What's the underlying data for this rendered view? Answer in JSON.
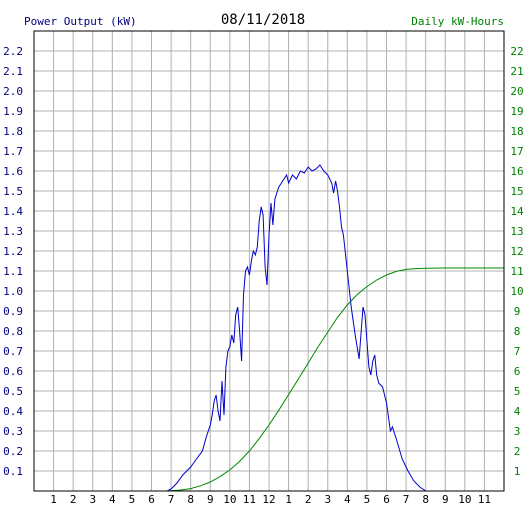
{
  "header": {
    "left_label": "Power Output (kW)",
    "date": "08/11/2018",
    "right_label": "Daily kW-Hours"
  },
  "colors": {
    "power": "#0000cc",
    "energy": "#008800",
    "grid": "#b0b0b0",
    "axis_text_left": "#000080",
    "axis_text_right": "#008000",
    "title": "#000000"
  },
  "chart_data": {
    "type": "line",
    "x_axis": {
      "ticks": [
        "1",
        "2",
        "3",
        "4",
        "5",
        "6",
        "7",
        "8",
        "9",
        "10",
        "11",
        "12",
        "1",
        "2",
        "3",
        "4",
        "5",
        "6",
        "7",
        "8",
        "9",
        "10",
        "11"
      ],
      "xlim": [
        0,
        24
      ],
      "unit": "hour of day"
    },
    "y_left": {
      "ticks": [
        "0.1",
        "0.2",
        "0.3",
        "0.4",
        "0.5",
        "0.6",
        "0.7",
        "0.8",
        "0.9",
        "1.0",
        "1.1",
        "1.2",
        "1.3",
        "1.4",
        "1.5",
        "1.6",
        "1.7",
        "1.8",
        "1.9",
        "2.0",
        "2.1",
        "2.2"
      ],
      "ylim": [
        0,
        2.3
      ],
      "label": "Power Output (kW)"
    },
    "y_right": {
      "ticks": [
        "1",
        "2",
        "3",
        "4",
        "5",
        "6",
        "7",
        "8",
        "9",
        "10",
        "11",
        "12",
        "13",
        "14",
        "15",
        "16",
        "17",
        "18",
        "19",
        "20",
        "21",
        "22"
      ],
      "ylim": [
        0,
        23
      ],
      "label": "Daily kW-Hours"
    },
    "grid": true,
    "series": [
      {
        "name": "Power Output (kW)",
        "axis": "left",
        "points": [
          [
            6.8,
            0.0
          ],
          [
            7.0,
            0.01
          ],
          [
            7.3,
            0.04
          ],
          [
            7.6,
            0.08
          ],
          [
            8.0,
            0.12
          ],
          [
            8.3,
            0.16
          ],
          [
            8.6,
            0.2
          ],
          [
            8.8,
            0.27
          ],
          [
            9.0,
            0.33
          ],
          [
            9.1,
            0.38
          ],
          [
            9.2,
            0.45
          ],
          [
            9.3,
            0.48
          ],
          [
            9.4,
            0.4
          ],
          [
            9.5,
            0.35
          ],
          [
            9.6,
            0.55
          ],
          [
            9.7,
            0.38
          ],
          [
            9.8,
            0.62
          ],
          [
            9.9,
            0.7
          ],
          [
            10.0,
            0.72
          ],
          [
            10.1,
            0.78
          ],
          [
            10.2,
            0.74
          ],
          [
            10.3,
            0.88
          ],
          [
            10.4,
            0.92
          ],
          [
            10.5,
            0.8
          ],
          [
            10.6,
            0.65
          ],
          [
            10.7,
            0.98
          ],
          [
            10.8,
            1.1
          ],
          [
            10.9,
            1.12
          ],
          [
            11.0,
            1.08
          ],
          [
            11.1,
            1.15
          ],
          [
            11.2,
            1.2
          ],
          [
            11.3,
            1.18
          ],
          [
            11.4,
            1.22
          ],
          [
            11.5,
            1.35
          ],
          [
            11.6,
            1.42
          ],
          [
            11.7,
            1.38
          ],
          [
            11.8,
            1.12
          ],
          [
            11.9,
            1.03
          ],
          [
            12.0,
            1.28
          ],
          [
            12.1,
            1.44
          ],
          [
            12.2,
            1.33
          ],
          [
            12.3,
            1.46
          ],
          [
            12.5,
            1.52
          ],
          [
            12.7,
            1.55
          ],
          [
            12.9,
            1.58
          ],
          [
            13.0,
            1.54
          ],
          [
            13.2,
            1.58
          ],
          [
            13.4,
            1.56
          ],
          [
            13.6,
            1.6
          ],
          [
            13.8,
            1.59
          ],
          [
            14.0,
            1.62
          ],
          [
            14.2,
            1.6
          ],
          [
            14.4,
            1.61
          ],
          [
            14.6,
            1.63
          ],
          [
            14.8,
            1.6
          ],
          [
            15.0,
            1.58
          ],
          [
            15.2,
            1.54
          ],
          [
            15.3,
            1.49
          ],
          [
            15.4,
            1.55
          ],
          [
            15.5,
            1.5
          ],
          [
            15.6,
            1.42
          ],
          [
            15.7,
            1.32
          ],
          [
            15.8,
            1.28
          ],
          [
            16.0,
            1.1
          ],
          [
            16.2,
            0.92
          ],
          [
            16.4,
            0.78
          ],
          [
            16.6,
            0.66
          ],
          [
            16.8,
            0.92
          ],
          [
            16.9,
            0.88
          ],
          [
            17.0,
            0.75
          ],
          [
            17.1,
            0.62
          ],
          [
            17.2,
            0.58
          ],
          [
            17.3,
            0.65
          ],
          [
            17.4,
            0.68
          ],
          [
            17.5,
            0.58
          ],
          [
            17.6,
            0.54
          ],
          [
            17.8,
            0.52
          ],
          [
            18.0,
            0.44
          ],
          [
            18.2,
            0.3
          ],
          [
            18.3,
            0.32
          ],
          [
            18.5,
            0.26
          ],
          [
            18.8,
            0.16
          ],
          [
            19.1,
            0.1
          ],
          [
            19.4,
            0.05
          ],
          [
            19.7,
            0.02
          ],
          [
            20.0,
            0.0
          ]
        ]
      },
      {
        "name": "Daily kW-Hours",
        "axis": "right",
        "points": [
          [
            6.8,
            0.0
          ],
          [
            7.5,
            0.05
          ],
          [
            8.0,
            0.12
          ],
          [
            8.5,
            0.26
          ],
          [
            9.0,
            0.45
          ],
          [
            9.5,
            0.72
          ],
          [
            10.0,
            1.05
          ],
          [
            10.5,
            1.48
          ],
          [
            11.0,
            2.0
          ],
          [
            11.5,
            2.62
          ],
          [
            12.0,
            3.3
          ],
          [
            12.5,
            4.04
          ],
          [
            13.0,
            4.82
          ],
          [
            13.5,
            5.6
          ],
          [
            14.0,
            6.4
          ],
          [
            14.5,
            7.2
          ],
          [
            15.0,
            7.95
          ],
          [
            15.5,
            8.68
          ],
          [
            16.0,
            9.3
          ],
          [
            16.5,
            9.82
          ],
          [
            17.0,
            10.22
          ],
          [
            17.5,
            10.55
          ],
          [
            18.0,
            10.8
          ],
          [
            18.5,
            10.98
          ],
          [
            19.0,
            11.08
          ],
          [
            19.5,
            11.12
          ],
          [
            20.0,
            11.14
          ],
          [
            21.0,
            11.15
          ],
          [
            22.0,
            11.15
          ],
          [
            23.0,
            11.15
          ],
          [
            24.0,
            11.15
          ]
        ]
      }
    ]
  }
}
